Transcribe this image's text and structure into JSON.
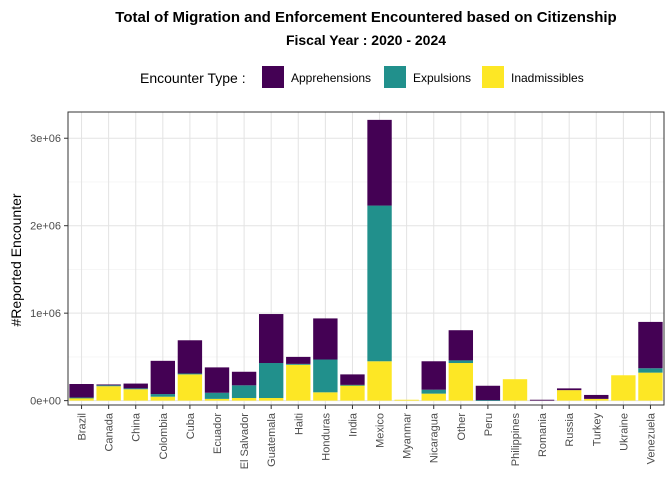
{
  "chart_data": {
    "type": "bar",
    "stacked": true,
    "title": "Total of Migration and Enforcement Encountered based on Citizenship",
    "subtitle": "Fiscal Year : 2020 - 2024",
    "xlabel": "",
    "ylabel": "#Reported Encounter",
    "ylim": [
      -50000,
      3300000
    ],
    "yticks": [
      0,
      1000000,
      2000000,
      3000000
    ],
    "ytick_labels": [
      "0e+00",
      "1e+06",
      "2e+06",
      "3e+06"
    ],
    "legend": {
      "title": "Encounter Type :",
      "placement": "top"
    },
    "grid": true,
    "categories": [
      "Brazil",
      "Canada",
      "China",
      "Colombia",
      "Cuba",
      "Ecuador",
      "El Salvador",
      "Guatemala",
      "Haiti",
      "Honduras",
      "India",
      "Mexico",
      "Myanmar",
      "Nicaragua",
      "Other",
      "Peru",
      "Philippines",
      "Romania",
      "Russia",
      "Turkey",
      "Ukraine",
      "Venezuela"
    ],
    "series": [
      {
        "name": "Inadmissibles",
        "color": "#FDE725",
        "values": [
          30000,
          165000,
          130000,
          45000,
          300000,
          20000,
          30000,
          30000,
          410000,
          95000,
          175000,
          450000,
          10000,
          80000,
          430000,
          0,
          245000,
          0,
          120000,
          20000,
          290000,
          320000
        ]
      },
      {
        "name": "Expulsions",
        "color": "#21908C",
        "values": [
          5000,
          10000,
          10000,
          30000,
          10000,
          70000,
          145000,
          400000,
          10000,
          375000,
          5000,
          1780000,
          0,
          45000,
          30000,
          5000,
          0,
          0,
          0,
          0,
          0,
          50000
        ]
      },
      {
        "name": "Apprehensions",
        "color": "#440154",
        "values": [
          155000,
          10000,
          55000,
          380000,
          380000,
          290000,
          155000,
          560000,
          80000,
          470000,
          120000,
          980000,
          0,
          325000,
          345000,
          165000,
          0,
          10000,
          20000,
          45000,
          0,
          530000
        ]
      }
    ],
    "legend_order": [
      "Apprehensions",
      "Expulsions",
      "Inadmissibles"
    ]
  }
}
